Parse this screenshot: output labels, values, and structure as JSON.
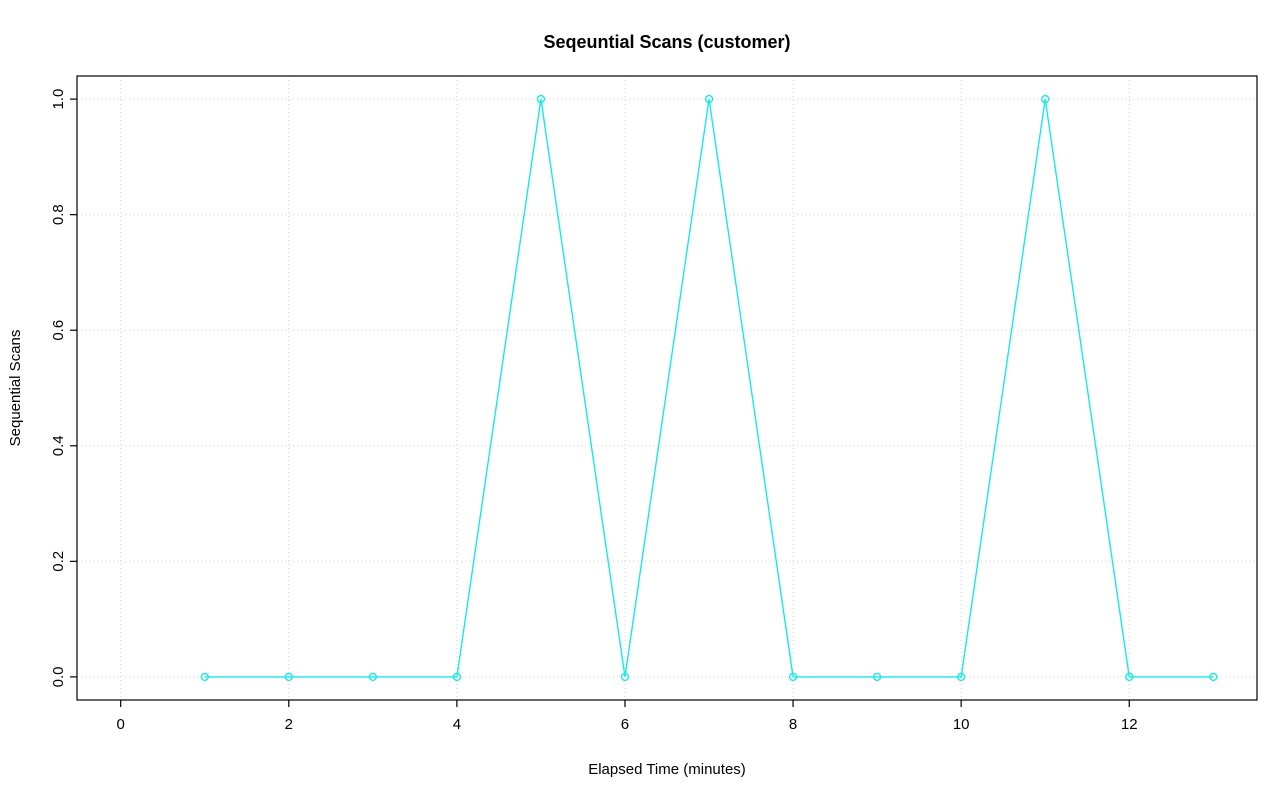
{
  "chart_data": {
    "type": "line",
    "title": "Seqeuntial Scans (customer)",
    "xlabel": "Elapsed Time (minutes)",
    "ylabel": "Sequential Scans",
    "x": [
      1,
      2,
      3,
      4,
      5,
      6,
      7,
      8,
      9,
      10,
      11,
      12,
      13
    ],
    "values": [
      0,
      0,
      0,
      0,
      1,
      0,
      1,
      0,
      0,
      0,
      1,
      0,
      0
    ],
    "xticks": [
      0,
      2,
      4,
      6,
      8,
      10,
      12
    ],
    "yticks": [
      0.0,
      0.2,
      0.4,
      0.6,
      0.8,
      1.0
    ],
    "xlim": [
      -0.52,
      13.52
    ],
    "ylim": [
      -0.04,
      1.04
    ],
    "series_color": "#19E8E8",
    "grid_color": "#D3D3D3",
    "border_color": "#000000",
    "grid_style": "dotted",
    "marker": "open-circle",
    "legend": "none"
  }
}
